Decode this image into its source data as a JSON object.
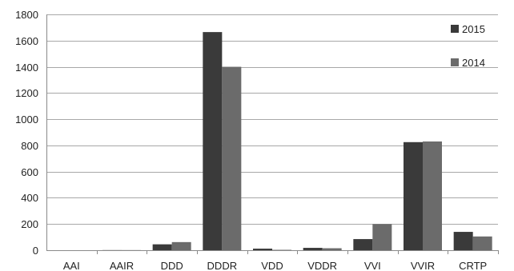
{
  "chart_data": {
    "type": "bar",
    "title": "",
    "xlabel": "",
    "ylabel": "",
    "categories": [
      "AAI",
      "AAIR",
      "DDD",
      "DDDR",
      "VDD",
      "VDDR",
      "VVI",
      "VVIR",
      "CRTP"
    ],
    "series": [
      {
        "name": "2015",
        "color": "#3a3a3a",
        "values": [
          0,
          1,
          45,
          1665,
          12,
          18,
          85,
          825,
          140
        ]
      },
      {
        "name": "2014",
        "color": "#6b6b6b",
        "values": [
          0,
          1,
          62,
          1400,
          3,
          15,
          200,
          830,
          105
        ]
      }
    ],
    "ylim": [
      0,
      1800
    ],
    "yticks": [
      0,
      200,
      400,
      600,
      800,
      1000,
      1200,
      1400,
      1600,
      1800
    ],
    "grid": true,
    "legend_position": "top-right"
  }
}
